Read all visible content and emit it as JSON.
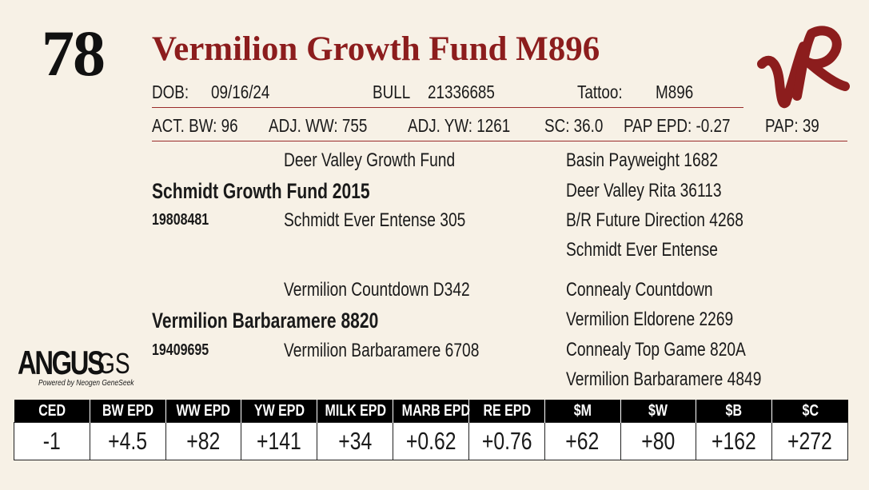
{
  "lot_number": "78",
  "animal_name": "Vermilion Growth Fund M896",
  "brand_logo": "VR",
  "details": {
    "dob_label": "DOB:",
    "dob": "09/16/24",
    "sex": "BULL",
    "registration": "21336685",
    "tattoo_label": "Tattoo:",
    "tattoo": "M896"
  },
  "performance": {
    "act_bw": "ACT. BW: 96",
    "adj_ww": "ADJ. WW: 755",
    "adj_yw": "ADJ. YW: 1261",
    "sc": "SC: 36.0",
    "pap_epd": "PAP EPD: -0.27",
    "pap": "PAP: 39"
  },
  "pedigree": {
    "sire": "Schmidt Growth Fund 2015",
    "sire_reg": "19808481",
    "sire_sire": "Deer Valley Growth Fund",
    "sire_dam": "Schmidt Ever Entense 305",
    "ss_sire": "Basin Payweight 1682",
    "ss_dam": "Deer Valley Rita 36113",
    "sd_sire": "B/R Future Direction 4268",
    "sd_dam": "Schmidt Ever Entense",
    "dam": "Vermilion Barbaramere 8820",
    "dam_reg": "19409695",
    "dam_sire": "Vermilion Countdown D342",
    "dam_dam": "Vermilion Barbaramere 6708",
    "ds_sire": "Connealy Countdown",
    "ds_dam": "Vermilion Eldorene 2269",
    "dd_sire": "Connealy Top Game 820A",
    "dd_dam": "Vermilion Barbaramere 4849"
  },
  "genomics_logo": {
    "word1": "ANGUS",
    "word2": "GS",
    "tagline": "Powered by Neogen GeneSeek"
  },
  "epd_table": {
    "headers": [
      "CED",
      "BW EPD",
      "WW EPD",
      "YW EPD",
      "MILK EPD",
      "MARB EPD",
      "RE EPD",
      "$M",
      "$W",
      "$B",
      "$C"
    ],
    "values": [
      "-1",
      "+4.5",
      "+82",
      "+141",
      "+34",
      "+0.62",
      "+0.76",
      "+62",
      "+80",
      "+162",
      "+272"
    ]
  },
  "colors": {
    "title": "#8c1d1d",
    "rule": "#9a2b2b",
    "background": "#f7f1e6",
    "header_bg": "#000000"
  }
}
